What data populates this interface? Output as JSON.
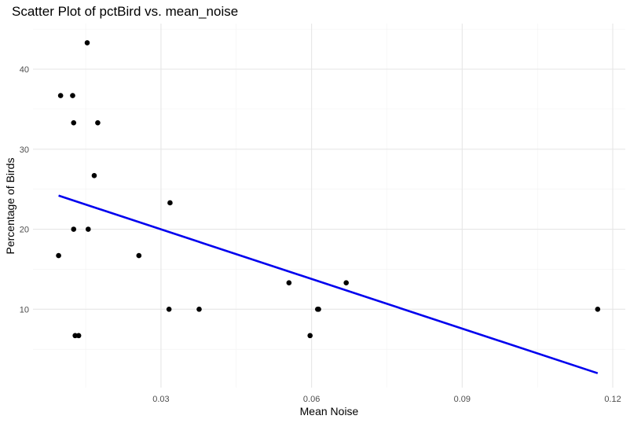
{
  "chart_data": {
    "type": "scatter",
    "title": "Scatter Plot of pctBird vs. mean_noise",
    "xlabel": "Mean Noise",
    "ylabel": "Percentage of Birds",
    "xlim": [
      0.0045,
      0.1225
    ],
    "ylim": [
      0.2,
      45.7
    ],
    "x_ticks": [
      0.03,
      0.06,
      0.09,
      0.12
    ],
    "x_tick_labels": [
      "0.03",
      "0.06",
      "0.09",
      "0.12"
    ],
    "y_ticks": [
      10,
      20,
      30,
      40
    ],
    "y_tick_labels": [
      "10",
      "20",
      "30",
      "40"
    ],
    "x_minor_ticks": [
      0.015,
      0.045,
      0.075,
      0.105
    ],
    "y_minor_ticks": [
      5,
      15,
      25,
      35,
      45
    ],
    "grid": true,
    "points": [
      {
        "x": 0.0096,
        "y": 16.7
      },
      {
        "x": 0.01,
        "y": 36.7
      },
      {
        "x": 0.0124,
        "y": 36.7
      },
      {
        "x": 0.0126,
        "y": 33.3
      },
      {
        "x": 0.0126,
        "y": 20.0
      },
      {
        "x": 0.0129,
        "y": 6.7
      },
      {
        "x": 0.0136,
        "y": 6.7
      },
      {
        "x": 0.0153,
        "y": 43.3
      },
      {
        "x": 0.0155,
        "y": 20.0
      },
      {
        "x": 0.0167,
        "y": 26.7
      },
      {
        "x": 0.0174,
        "y": 33.3
      },
      {
        "x": 0.0256,
        "y": 16.7
      },
      {
        "x": 0.0316,
        "y": 10.0
      },
      {
        "x": 0.0318,
        "y": 23.3
      },
      {
        "x": 0.0376,
        "y": 10.0
      },
      {
        "x": 0.0555,
        "y": 13.3
      },
      {
        "x": 0.0597,
        "y": 6.7
      },
      {
        "x": 0.0612,
        "y": 10.0
      },
      {
        "x": 0.0614,
        "y": 10.0
      },
      {
        "x": 0.0669,
        "y": 13.3
      },
      {
        "x": 0.117,
        "y": 10.0
      }
    ],
    "trend_line": {
      "x1": 0.0096,
      "y1": 24.2,
      "x2": 0.117,
      "y2": 2.0
    },
    "colors": {
      "points": "#000000",
      "trend_line": "#0000ee",
      "grid_major": "#e6e6e6",
      "grid_minor": "#f2f2f2",
      "tick_label": "#4d4d4d"
    }
  }
}
